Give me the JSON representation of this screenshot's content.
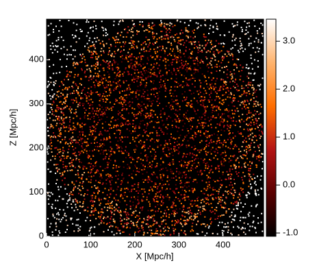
{
  "chart_data": {
    "type": "heatmap",
    "x_label": "X [Mpc/h]",
    "y_label": "Z [Mpc/h]",
    "xlim": [
      0,
      492
    ],
    "ylim": [
      0,
      492
    ],
    "xticks": [
      0,
      100,
      200,
      300,
      400
    ],
    "yticks": [
      0,
      100,
      200,
      300,
      400
    ],
    "colorbar": {
      "clim": [
        -1.07,
        3.46
      ],
      "ticks": [
        {
          "value": -1,
          "label": "-1.0"
        },
        {
          "value": 0,
          "label": "0.0"
        },
        {
          "value": 1,
          "label": "1.0"
        },
        {
          "value": 2,
          "label": "2.0"
        },
        {
          "value": 3,
          "label": "3.0"
        }
      ],
      "colormap": [
        "#000000",
        "#5a0000",
        "#b41414",
        "#ff6e00",
        "#ffb46e",
        "#ffffff"
      ]
    }
  }
}
